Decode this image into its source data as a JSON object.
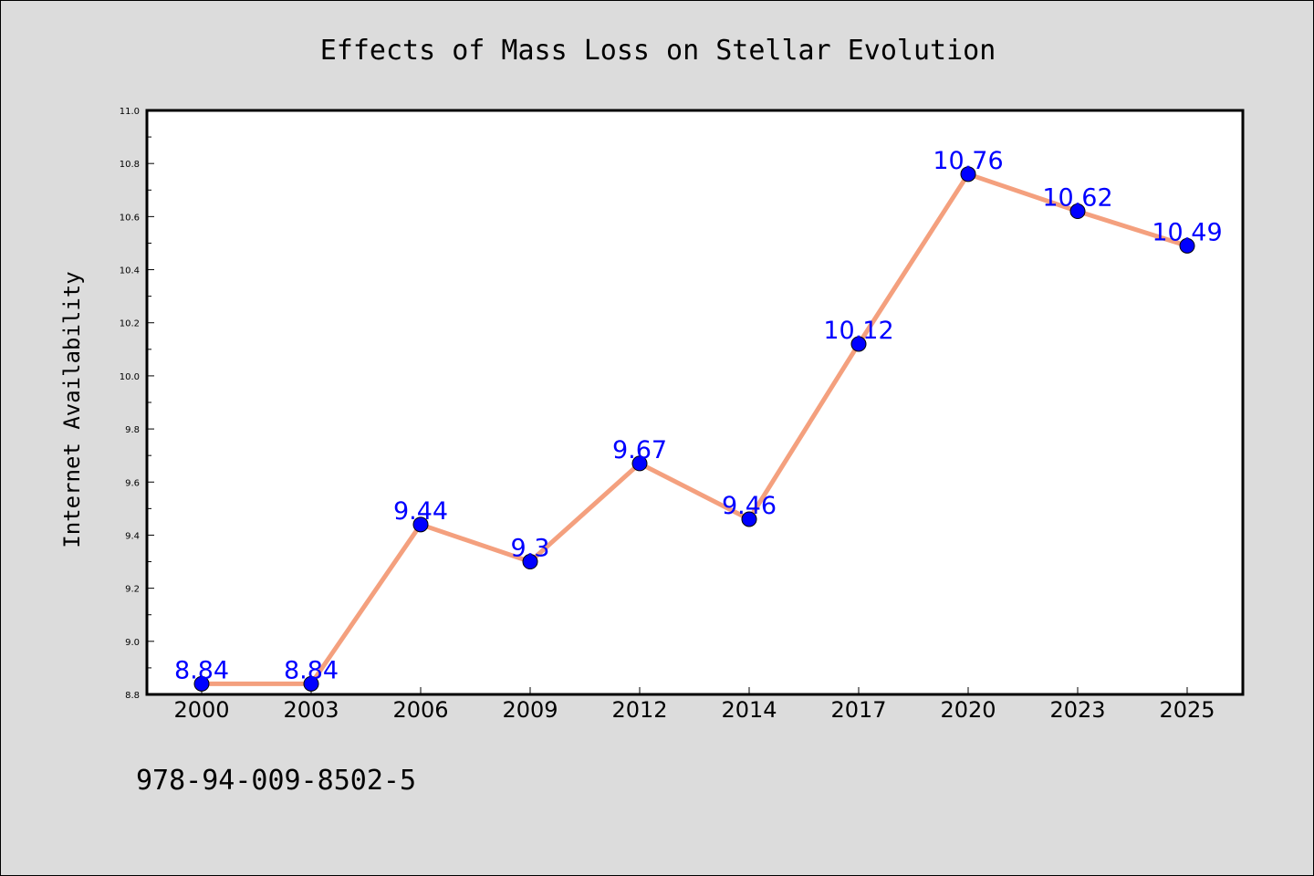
{
  "chart_data": {
    "type": "line",
    "title": "Effects of Mass Loss on Stellar Evolution",
    "xlabel": "",
    "ylabel": "Internet Availability",
    "categories": [
      "2000",
      "2003",
      "2006",
      "2009",
      "2012",
      "2014",
      "2017",
      "2020",
      "2023",
      "2025"
    ],
    "values": [
      8.84,
      8.84,
      9.44,
      9.3,
      9.67,
      9.46,
      10.12,
      10.76,
      10.62,
      10.49
    ],
    "data_labels": [
      "8.84",
      "8.84",
      "9.44",
      "9.3",
      "9.67",
      "9.46",
      "10.12",
      "10.76",
      "10.62",
      "10.49"
    ],
    "ylim": [
      8.8,
      11.0
    ],
    "yticks": [
      "8.8",
      "9.0",
      "9.2",
      "9.4",
      "9.6",
      "9.8",
      "10.0",
      "10.2",
      "10.4",
      "10.6",
      "10.8",
      "11.0"
    ],
    "grid": false,
    "line_color": "#f4a07e",
    "marker_color": "#0000ff",
    "label_color": "#0000ff"
  },
  "footer": {
    "isbn": "978-94-009-8502-5"
  },
  "colors": {
    "background": "#dcdcdc",
    "plot_area": "#ffffff"
  }
}
